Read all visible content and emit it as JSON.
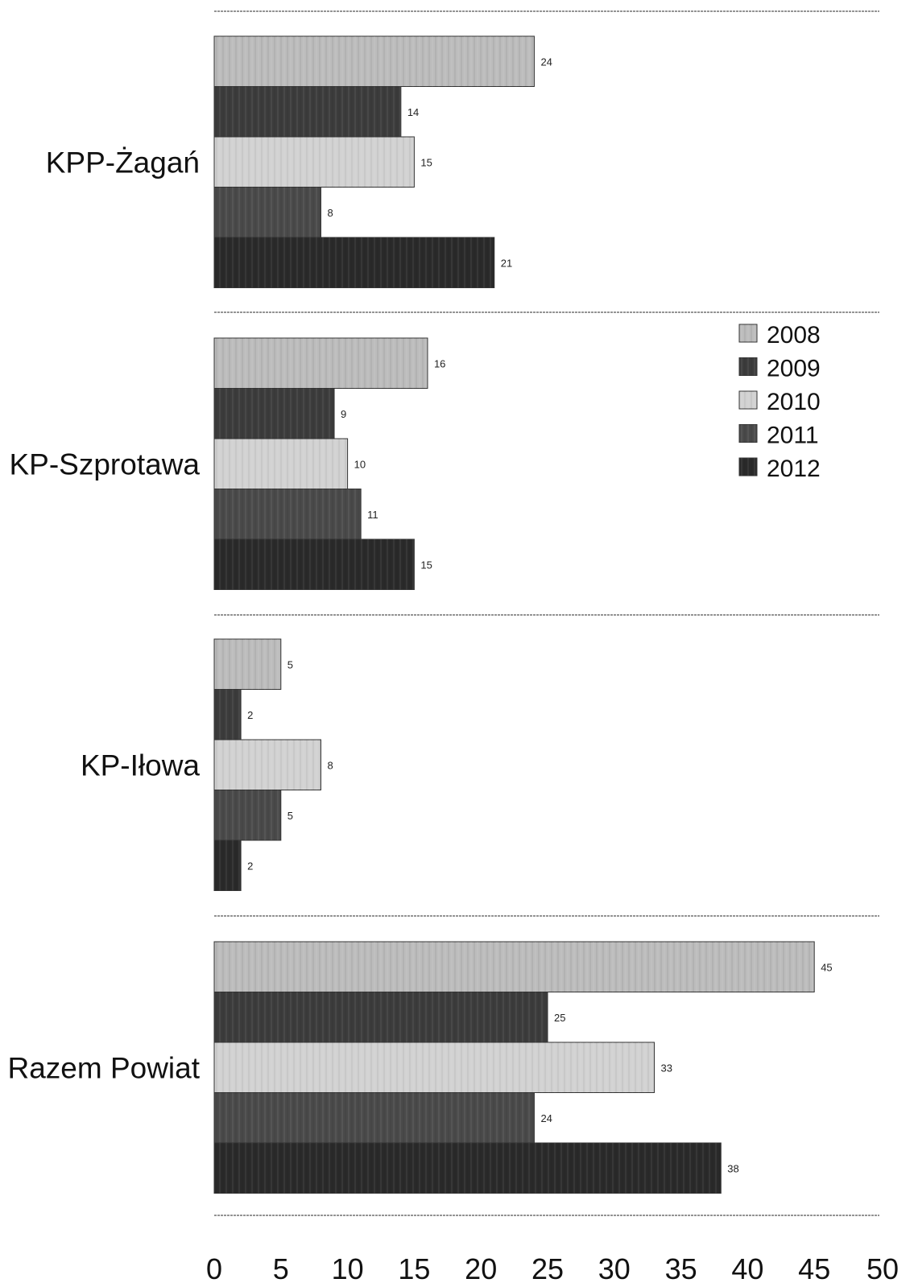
{
  "chart_data": {
    "type": "bar",
    "orientation": "horizontal",
    "title": "",
    "xlabel": "",
    "ylabel": "",
    "xlim": [
      0,
      50
    ],
    "x_ticks": [
      "0",
      "5",
      "10",
      "15",
      "20",
      "25",
      "30",
      "35",
      "40",
      "45",
      "50"
    ],
    "categories": [
      "KPP-Żagań",
      "KP-Szprotawa",
      "KP-Iłowa",
      "Razem Powiat"
    ],
    "series": [
      {
        "name": "2008",
        "values": [
          24,
          16,
          5,
          45
        ],
        "color": "#bcbcbc"
      },
      {
        "name": "2009",
        "values": [
          14,
          9,
          2,
          25
        ],
        "color": "#3c3c3c"
      },
      {
        "name": "2010",
        "values": [
          15,
          10,
          8,
          33
        ],
        "color": "#d2d2d2"
      },
      {
        "name": "2011",
        "values": [
          8,
          11,
          5,
          24
        ],
        "color": "#4a4a4a"
      },
      {
        "name": "2012",
        "values": [
          21,
          15,
          2,
          38
        ],
        "color": "#2a2a2a"
      }
    ],
    "legend_position": "right, beside KP-Szprotawa group",
    "grid": false,
    "data_labels": true
  }
}
